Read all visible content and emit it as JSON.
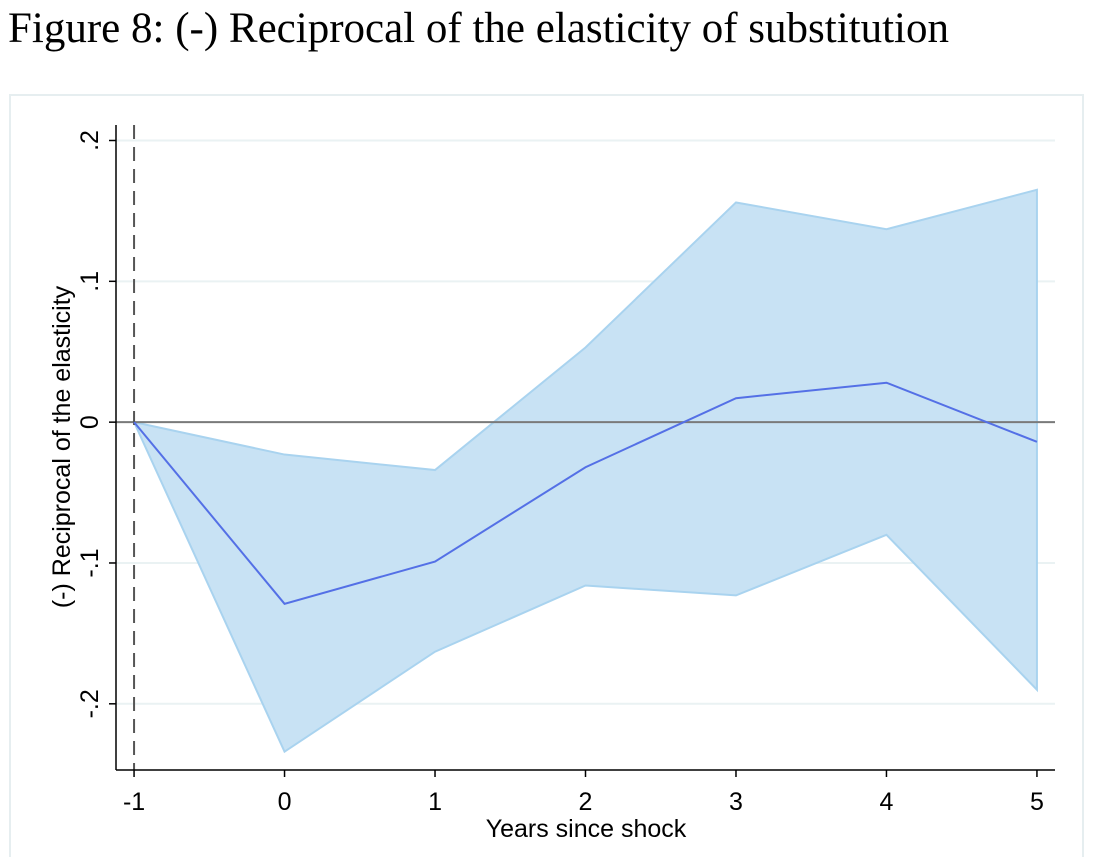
{
  "chart_data": {
    "type": "line",
    "title": "Figure 8: (-) Reciprocal of the elasticity of substitution",
    "x_label": "Years since shock",
    "y_label": "(-) Reciprocal of the elasticity",
    "x": [
      -1,
      0,
      1,
      2,
      3,
      4,
      5
    ],
    "values": [
      0,
      -0.129,
      -0.099,
      -0.032,
      0.017,
      0.028,
      -0.014
    ],
    "ci_upper": [
      0,
      -0.023,
      -0.034,
      0.053,
      0.156,
      0.137,
      0.165
    ],
    "ci_lower": [
      0,
      -0.234,
      -0.163,
      -0.116,
      -0.123,
      -0.08,
      -0.19
    ],
    "line_color": "#5470e6",
    "band_color": "#c8e2f4",
    "band_edge_color": "#a9d3ef",
    "xlim": [
      -1.12,
      5.12
    ],
    "ylim": [
      -0.247,
      0.211
    ],
    "xticks": [
      -1,
      0,
      1,
      2,
      3,
      4,
      5
    ],
    "yticks": [
      {
        "value": 0.2,
        "label": ".2"
      },
      {
        "value": 0.1,
        "label": ".1"
      },
      0,
      {
        "value": -0.1,
        "label": "-.1"
      },
      {
        "value": -0.2,
        "label": "-.2"
      }
    ],
    "vline": -1,
    "hline": 0,
    "grid": true
  }
}
